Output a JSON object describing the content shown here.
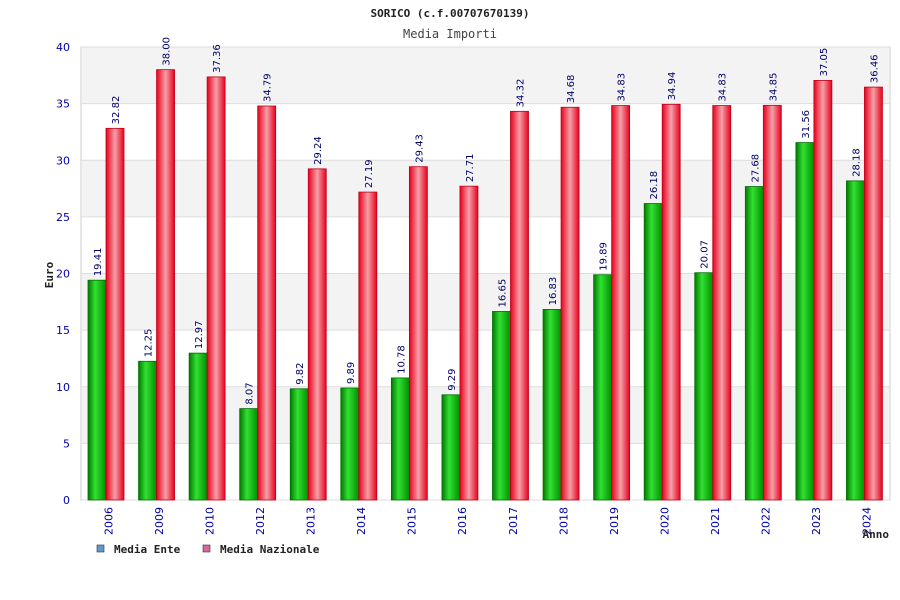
{
  "chart_data": {
    "type": "bar",
    "title": "SORICO (c.f.00707670139)",
    "subtitle": "Media Importi",
    "xlabel": "Anno",
    "ylabel": "Euro",
    "ylim": [
      0,
      40
    ],
    "yticks": [
      "0",
      "5",
      "10",
      "15",
      "20",
      "25",
      "30",
      "35",
      "40"
    ],
    "grid": true,
    "legend_position": "bottom-left",
    "categories": [
      "2006",
      "2009",
      "2010",
      "2012",
      "2013",
      "2014",
      "2015",
      "2016",
      "2017",
      "2018",
      "2019",
      "2020",
      "2021",
      "2022",
      "2023",
      "2024"
    ],
    "series": [
      {
        "name": "Media Ente",
        "color": "#00c000",
        "legend_color": "#5b9bd5",
        "values": [
          19.41,
          12.25,
          12.97,
          8.07,
          9.82,
          9.89,
          10.78,
          9.29,
          16.65,
          16.83,
          19.89,
          26.18,
          20.07,
          27.68,
          31.56,
          28.18
        ],
        "labels": [
          "19.41",
          "12.25",
          "12.97",
          "8.07",
          "9.82",
          "9.89",
          "10.78",
          "9.29",
          "16.65",
          "16.83",
          "19.89",
          "26.18",
          "20.07",
          "27.68",
          "31.56",
          "28.18"
        ]
      },
      {
        "name": "Media Nazionale",
        "color": "#e8001c",
        "legend_color": "#d6679c",
        "values": [
          32.82,
          38.0,
          37.36,
          34.79,
          29.24,
          27.19,
          29.43,
          27.71,
          34.32,
          34.68,
          34.83,
          34.94,
          34.83,
          34.85,
          37.05,
          36.46
        ],
        "labels": [
          "32.82",
          "38.00",
          "37.36",
          "34.79",
          "29.24",
          "27.19",
          "29.43",
          "27.71",
          "34.32",
          "34.68",
          "34.83",
          "34.94",
          "34.83",
          "34.85",
          "37.05",
          "36.46"
        ]
      }
    ]
  }
}
